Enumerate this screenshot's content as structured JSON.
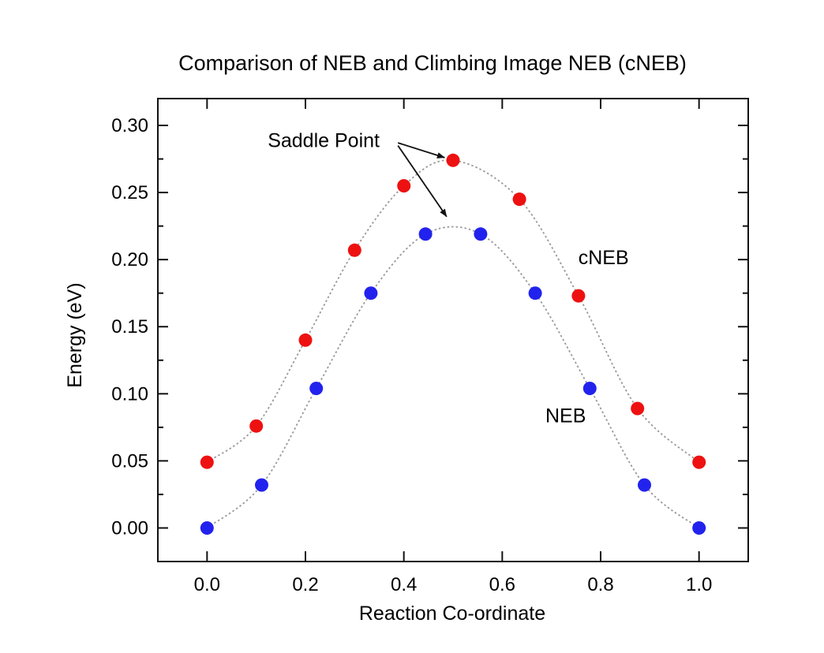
{
  "page": {
    "background": "#ffffff"
  },
  "chart_data": {
    "type": "scatter",
    "title": "Comparison of NEB and Climbing Image NEB (cNEB)",
    "xlabel": "Reaction Co-ordinate",
    "ylabel": "Energy (eV)",
    "xlim": [
      -0.1,
      1.1
    ],
    "ylim": [
      -0.025,
      0.32
    ],
    "x_ticks": [
      0.0,
      0.2,
      0.4,
      0.6,
      0.8,
      1.0
    ],
    "x_tick_labels": [
      "0.0",
      "0.2",
      "0.4",
      "0.6",
      "0.8",
      "1.0"
    ],
    "y_ticks": [
      0.0,
      0.05,
      0.1,
      0.15,
      0.2,
      0.25,
      0.3
    ],
    "y_tick_labels": [
      "0.00",
      "0.05",
      "0.10",
      "0.15",
      "0.20",
      "0.25",
      "0.30"
    ],
    "y_minor_ticks": [
      0.025,
      0.075,
      0.125,
      0.175,
      0.225,
      0.275
    ],
    "grid": false,
    "legend_position": "none (curves labeled inline)",
    "series": [
      {
        "name": "cNEB",
        "color": "#ee1111",
        "marker": "circle",
        "line_style": "dotted gray interpolation spline",
        "x": [
          0.0,
          0.1,
          0.2,
          0.3,
          0.4,
          0.5,
          0.635,
          0.755,
          0.875,
          1.0
        ],
        "y": [
          0.049,
          0.076,
          0.14,
          0.207,
          0.255,
          0.274,
          0.245,
          0.173,
          0.089,
          0.049
        ]
      },
      {
        "name": "NEB",
        "color": "#2222ee",
        "marker": "circle",
        "line_style": "dotted gray interpolation spline",
        "x": [
          0.0,
          0.111,
          0.222,
          0.333,
          0.444,
          0.556,
          0.667,
          0.778,
          0.889,
          1.0
        ],
        "y": [
          0.0,
          0.032,
          0.104,
          0.175,
          0.219,
          0.219,
          0.175,
          0.104,
          0.032,
          0.0
        ]
      }
    ],
    "annotations": [
      {
        "text": "Saddle Point",
        "x": 0.237,
        "y": 0.289,
        "anchor": "middle"
      },
      {
        "text": "cNEB",
        "x": 0.806,
        "y": 0.202,
        "anchor": "middle"
      },
      {
        "text": "NEB",
        "x": 0.729,
        "y": 0.084,
        "anchor": "middle"
      }
    ],
    "arrows": [
      {
        "from_x": 0.388,
        "from_y": 0.287,
        "to_x": 0.483,
        "to_y": 0.276,
        "points_to": "cNEB saddle point (0.50, 0.274)"
      },
      {
        "from_x": 0.388,
        "from_y": 0.285,
        "to_x": 0.487,
        "to_y": 0.232,
        "points_to": "top of NEB curve between images"
      }
    ],
    "style": {
      "curve_color": "#999999",
      "axis_color": "#111111",
      "arrow_color": "#111111",
      "text_color": "#000000"
    }
  }
}
